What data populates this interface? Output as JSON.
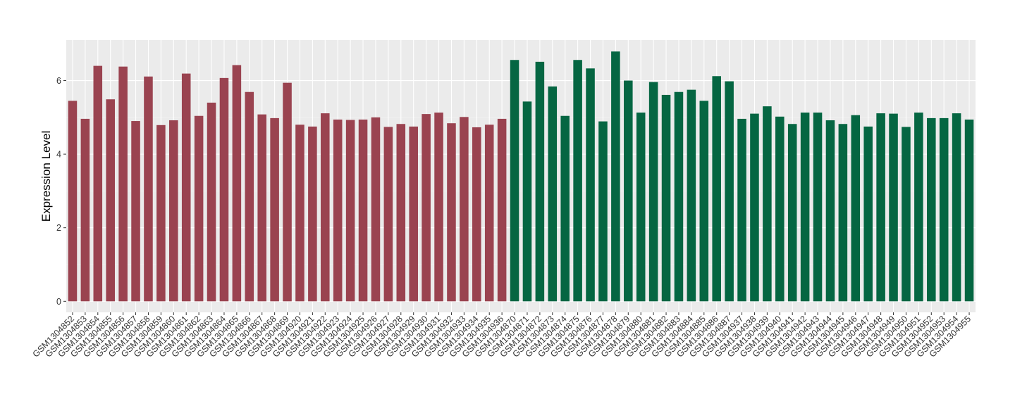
{
  "chart_data": {
    "type": "bar",
    "xlabel": "",
    "ylabel": "Expression Level",
    "ylim": [
      -0.3,
      7.1
    ],
    "yticks": [
      0,
      2,
      4,
      6
    ],
    "grid": true,
    "panel_background": "#EBEBEB",
    "categories": [
      "GSM1304852",
      "GSM1304853",
      "GSM1304854",
      "GSM1304855",
      "GSM1304856",
      "GSM1304857",
      "GSM1304858",
      "GSM1304859",
      "GSM1304860",
      "GSM1304861",
      "GSM1304862",
      "GSM1304863",
      "GSM1304864",
      "GSM1304865",
      "GSM1304866",
      "GSM1304867",
      "GSM1304868",
      "GSM1304869",
      "GSM1304920",
      "GSM1304921",
      "GSM1304922",
      "GSM1304923",
      "GSM1304924",
      "GSM1304925",
      "GSM1304926",
      "GSM1304927",
      "GSM1304928",
      "GSM1304929",
      "GSM1304930",
      "GSM1304931",
      "GSM1304932",
      "GSM1304933",
      "GSM1304934",
      "GSM1304935",
      "GSM1304936",
      "GSM1304870",
      "GSM1304871",
      "GSM1304872",
      "GSM1304873",
      "GSM1304874",
      "GSM1304875",
      "GSM1304876",
      "GSM1304877",
      "GSM1304878",
      "GSM1304879",
      "GSM1304880",
      "GSM1304881",
      "GSM1304882",
      "GSM1304883",
      "GSM1304884",
      "GSM1304885",
      "GSM1304886",
      "GSM1304887",
      "GSM1304937",
      "GSM1304938",
      "GSM1304939",
      "GSM1304940",
      "GSM1304941",
      "GSM1304942",
      "GSM1304943",
      "GSM1304944",
      "GSM1304945",
      "GSM1304946",
      "GSM1304947",
      "GSM1304948",
      "GSM1304949",
      "GSM1304950",
      "GSM1304951",
      "GSM1304952",
      "GSM1304953",
      "GSM1304954",
      "GSM1304955"
    ],
    "values": [
      5.45,
      4.96,
      6.4,
      5.49,
      6.38,
      4.9,
      6.11,
      4.79,
      4.92,
      6.19,
      5.04,
      5.4,
      6.07,
      6.42,
      5.69,
      5.08,
      4.98,
      5.94,
      4.8,
      4.75,
      5.11,
      4.94,
      4.93,
      4.94,
      5.0,
      4.74,
      4.82,
      4.75,
      5.09,
      5.13,
      4.84,
      5.01,
      4.73,
      4.8,
      4.96,
      6.56,
      5.43,
      6.51,
      5.84,
      5.04,
      6.56,
      6.33,
      4.89,
      6.79,
      6.0,
      5.13,
      5.96,
      5.61,
      5.69,
      5.75,
      5.45,
      6.12,
      5.98,
      4.96,
      5.1,
      5.3,
      5.02,
      4.82,
      5.13,
      5.13,
      4.92,
      4.82,
      5.06,
      4.75,
      5.11,
      5.1,
      4.74,
      5.13,
      4.98,
      4.98,
      5.11,
      4.94
    ],
    "group_sizes": [
      35,
      37
    ],
    "colors": [
      "#9A4350",
      "#056642"
    ]
  }
}
